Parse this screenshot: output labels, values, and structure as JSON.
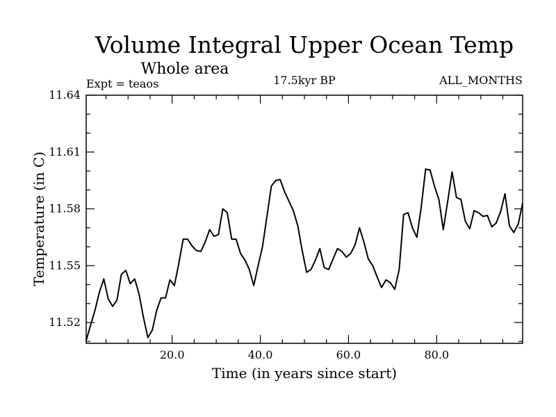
{
  "chart_data": {
    "type": "line",
    "title": "Volume Integral Upper Ocean Temp",
    "subtitle": "Whole area",
    "top_left_label": "Expt = teaos",
    "top_center_label": "17.5kyr BP",
    "top_right_label": "ALL_MONTHS",
    "xlabel": "Time (in years since start)",
    "ylabel": "Temperature (in C)",
    "xlim": [
      0.5,
      99.5
    ],
    "ylim": [
      11.509,
      11.64
    ],
    "xticks": [
      20.0,
      40.0,
      60.0,
      80.0
    ],
    "xtick_labels": [
      "20.0",
      "40.0",
      "60.0",
      "80.0"
    ],
    "yticks": [
      11.52,
      11.55,
      11.58,
      11.61,
      11.64
    ],
    "ytick_labels": [
      "11.52",
      "11.55",
      "11.58",
      "11.61",
      "11.64"
    ],
    "grid": false,
    "series": [
      {
        "name": "Volume Integral Upper Ocean Temp",
        "color": "#000000",
        "x": [
          0.5,
          1.5,
          2.5,
          3.5,
          4.5,
          5.5,
          6.5,
          7.5,
          8.5,
          9.5,
          10.5,
          11.5,
          12.5,
          13.5,
          14.5,
          15.5,
          16.5,
          17.5,
          18.5,
          19.5,
          20.5,
          21.5,
          22.5,
          23.5,
          24.5,
          25.5,
          26.5,
          27.5,
          28.5,
          29.5,
          30.5,
          31.5,
          32.5,
          33.5,
          34.5,
          35.5,
          36.5,
          37.5,
          38.5,
          39.5,
          40.5,
          41.5,
          42.5,
          43.5,
          44.5,
          45.5,
          46.5,
          47.5,
          48.5,
          49.5,
          50.5,
          51.5,
          52.5,
          53.5,
          54.5,
          55.5,
          56.5,
          57.5,
          58.5,
          59.5,
          60.5,
          61.5,
          62.5,
          63.5,
          64.5,
          65.5,
          66.5,
          67.5,
          68.5,
          69.5,
          70.5,
          71.5,
          72.5,
          73.5,
          74.5,
          75.5,
          76.5,
          77.5,
          78.5,
          79.5,
          80.5,
          81.5,
          82.5,
          83.5,
          84.5,
          85.5,
          86.5,
          87.5,
          88.5,
          89.5,
          90.5,
          91.5,
          92.5,
          93.5,
          94.5,
          95.5,
          96.5,
          97.5,
          98.5,
          99.5
        ],
        "values": [
          11.5105,
          11.5185,
          11.5265,
          11.536,
          11.543,
          11.5325,
          11.5285,
          11.532,
          11.5455,
          11.5475,
          11.5405,
          11.543,
          11.535,
          11.5225,
          11.512,
          11.516,
          11.5265,
          11.533,
          11.533,
          11.5425,
          11.5395,
          11.551,
          11.564,
          11.564,
          11.5605,
          11.558,
          11.5575,
          11.5625,
          11.569,
          11.5655,
          11.5665,
          11.58,
          11.578,
          11.564,
          11.564,
          11.5565,
          11.553,
          11.548,
          11.5395,
          11.55,
          11.56,
          11.576,
          11.592,
          11.595,
          11.5955,
          11.589,
          11.584,
          11.579,
          11.571,
          11.558,
          11.5465,
          11.548,
          11.553,
          11.559,
          11.549,
          11.548,
          11.5535,
          11.559,
          11.5575,
          11.5545,
          11.5565,
          11.561,
          11.57,
          11.5625,
          11.5535,
          11.55,
          11.544,
          11.5385,
          11.5425,
          11.541,
          11.5375,
          11.548,
          11.577,
          11.578,
          11.57,
          11.565,
          11.581,
          11.601,
          11.6005,
          11.592,
          11.585,
          11.569,
          11.584,
          11.5995,
          11.586,
          11.585,
          11.5735,
          11.5695,
          11.579,
          11.578,
          11.576,
          11.5765,
          11.5705,
          11.5725,
          11.5785,
          11.588,
          11.571,
          11.5675,
          11.572,
          11.583
        ]
      }
    ]
  }
}
